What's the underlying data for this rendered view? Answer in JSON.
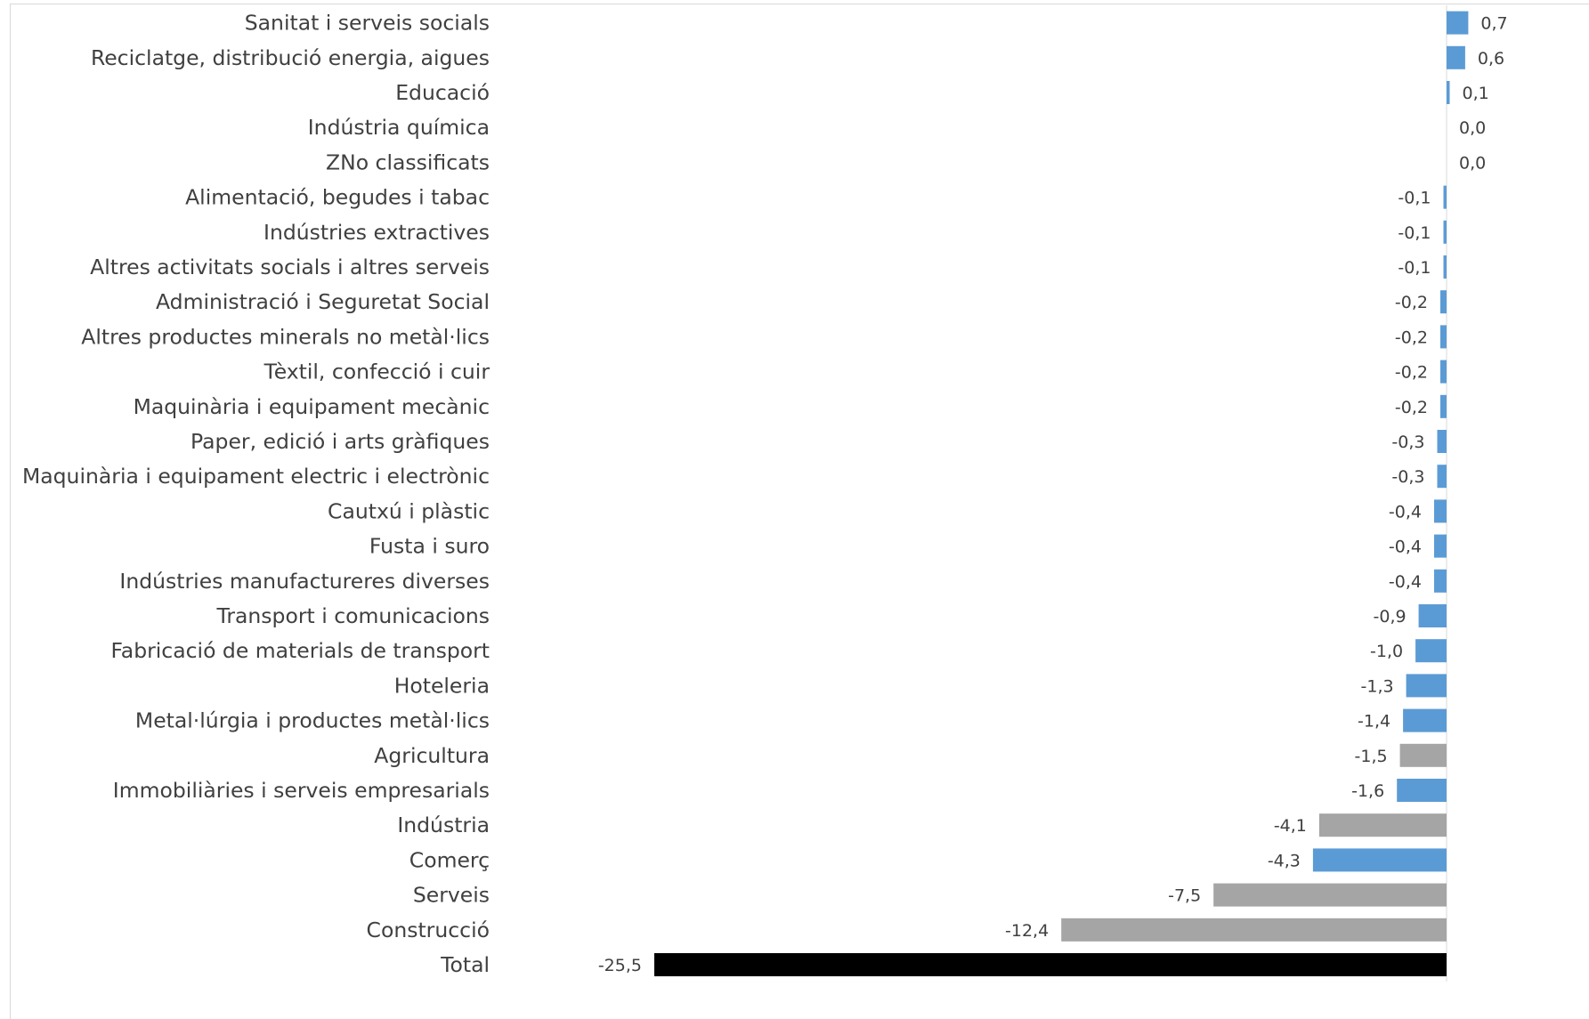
{
  "chart_data": {
    "type": "bar",
    "orientation": "horizontal",
    "categories": [
      "Sanitat i serveis socials",
      "Reciclatge, distribució energia, aigues",
      "Educació",
      "Indústria química",
      "ZNo classificats",
      "Alimentació, begudes i tabac",
      "Indústries extractives",
      "Altres activitats socials i altres serveis",
      "Administració i Seguretat Social",
      "Altres productes minerals no metàl·lics",
      "Tèxtil, confecció i cuir",
      "Maquinària i equipament mecànic",
      "Paper, edició i arts gràfiques",
      "Maquinària i equipament electric i electrònic",
      "Cautxú i plàstic",
      "Fusta i suro",
      "Indústries manufactureres diverses",
      "Transport i comunicacions",
      "Fabricació de materials de transport",
      "Hoteleria",
      "Metal·lúrgia i productes metàl·lics",
      "Agricultura",
      "Immobiliàries i serveis empresarials",
      "Indústria",
      "Comerç",
      "Serveis",
      "Construcció",
      "Total"
    ],
    "values": [
      0.7,
      0.6,
      0.1,
      0.0,
      0.0,
      -0.1,
      -0.1,
      -0.1,
      -0.2,
      -0.2,
      -0.2,
      -0.2,
      -0.3,
      -0.3,
      -0.4,
      -0.4,
      -0.4,
      -0.9,
      -1.0,
      -1.3,
      -1.4,
      -1.5,
      -1.6,
      -4.1,
      -4.3,
      -7.5,
      -12.4,
      -25.5
    ],
    "value_labels": [
      "0,7",
      "0,6",
      "0,1",
      "0,0",
      "0,0",
      "-0,1",
      "-0,1",
      "-0,1",
      "-0,2",
      "-0,2",
      "-0,2",
      "-0,2",
      "-0,3",
      "-0,3",
      "-0,4",
      "-0,4",
      "-0,4",
      "-0,9",
      "-1,0",
      "-1,3",
      "-1,4",
      "-1,5",
      "-1,6",
      "-4,1",
      "-4,3",
      "-7,5",
      "-12,4",
      "-25,5"
    ],
    "bar_colors": [
      "#5b9bd5",
      "#5b9bd5",
      "#5b9bd5",
      "#5b9bd5",
      "#5b9bd5",
      "#5b9bd5",
      "#5b9bd5",
      "#5b9bd5",
      "#5b9bd5",
      "#5b9bd5",
      "#5b9bd5",
      "#5b9bd5",
      "#5b9bd5",
      "#5b9bd5",
      "#5b9bd5",
      "#5b9bd5",
      "#5b9bd5",
      "#5b9bd5",
      "#5b9bd5",
      "#5b9bd5",
      "#5b9bd5",
      "#a5a5a5",
      "#5b9bd5",
      "#a5a5a5",
      "#5b9bd5",
      "#a5a5a5",
      "#a5a5a5",
      "#000000"
    ],
    "title": "",
    "xlabel": "",
    "ylabel": "",
    "xlim": [
      -25.5,
      0.7
    ],
    "grid": false,
    "legend": "none"
  },
  "colors": {
    "sector_bar": "#5b9bd5",
    "aggregate_bar": "#a5a5a5",
    "total_bar": "#000000",
    "axis_line": "#d9d9d9",
    "label_text": "#404040"
  }
}
